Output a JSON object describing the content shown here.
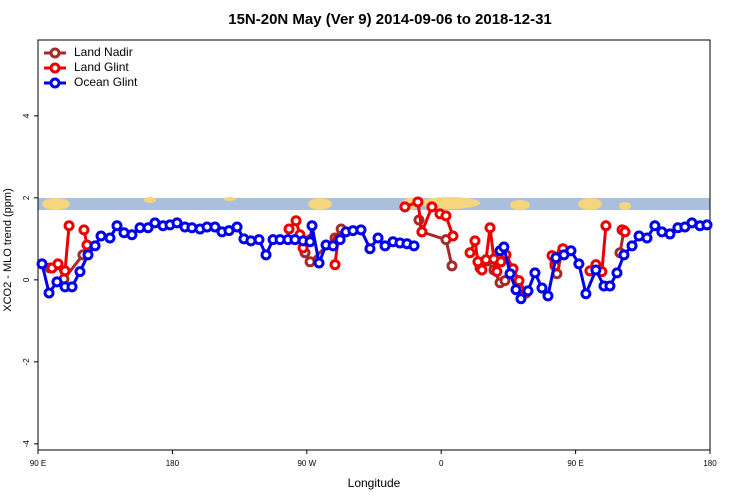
{
  "chart_data": {
    "type": "line",
    "title": "15N-20N May (Ver 9)   2014-09-06 to 2018-12-31",
    "xlabel": "Longitude",
    "ylabel": "XCO2 - MLO trend (ppm)",
    "xlim": [
      90,
      540
    ],
    "xticks": [
      {
        "value": 90,
        "label": "90 E"
      },
      180,
      {
        "value": 270,
        "label": "90 W"
      },
      {
        "value": 360,
        "label": "0"
      },
      {
        "value": 450,
        "label": "90 E"
      },
      {
        "value": 540,
        "label": "180"
      }
    ],
    "ylim": [
      -4.15,
      5.85
    ],
    "yticks": [
      -4,
      -2,
      0,
      2,
      4
    ],
    "legend": "top-left",
    "series": [
      {
        "name": "Land Nadir",
        "color": "#a52a2a",
        "x": [
          98.0,
          103.4,
          107.4,
          120.1,
          200,
          267.5,
          268.8,
          272.2,
          288.9,
          293.0,
          320,
          345.1,
          347.1,
          363.2,
          367.2,
          375,
          386.0,
          390.7,
          395.3,
          399.4,
          402.7,
          420,
          436.2,
          437.5,
          440.9,
          460,
          479.7,
          482.4
        ],
        "values": [
          0.29,
          0.37,
          0.02,
          0.61,
          null,
          0.95,
          0.66,
          0.44,
          1.02,
          1.24,
          null,
          1.46,
          1.17,
          0.98,
          0.34,
          null,
          0.29,
          0.46,
          0.24,
          -0.07,
          -0.02,
          null,
          0.41,
          0.15,
          0.66,
          null,
          0.66,
          1.2
        ]
      },
      {
        "name": "Land Glint",
        "color": "#ee0000",
        "x": [
          99.4,
          103.4,
          108.1,
          110.8,
          115,
          120.8,
          122.8,
          200,
          258.1,
          262.8,
          265.4,
          267.5,
          272.2,
          275,
          288.9,
          290.9,
          320,
          335.7,
          344.4,
          347.1,
          353.8,
          359.2,
          363.2,
          367.9,
          375,
          379.3,
          382.6,
          384.6,
          387.3,
          390.0,
          392.7,
          395.3,
          397.3,
          400.0,
          403.4,
          408.1,
          412.1,
          416.8,
          430,
          434.2,
          436.2,
          441.5,
          455,
          459.6,
          463.6,
          467.6,
          470.3,
          475,
          481.1,
          483.1
        ],
        "values": [
          0.29,
          0.39,
          0.22,
          1.32,
          null,
          1.22,
          0.85,
          null,
          1.24,
          1.44,
          1.1,
          0.78,
          0.98,
          null,
          0.37,
          0.98,
          null,
          1.78,
          1.9,
          1.17,
          1.78,
          1.61,
          1.56,
          1.07,
          null,
          0.66,
          0.95,
          0.44,
          0.24,
          0.49,
          1.27,
          0.51,
          0.2,
          0.44,
          0.61,
          0.27,
          -0.02,
          -0.32,
          null,
          0.59,
          0.34,
          0.76,
          null,
          0.22,
          0.37,
          0.2,
          1.32,
          null,
          1.22,
          1.17
        ]
      },
      {
        "name": "Ocean Glint",
        "color": "#0000ee",
        "x": [
          92.7,
          97.4,
          102.7,
          108.1,
          112.8,
          118.1,
          123.5,
          128.2,
          132.2,
          138.2,
          142.9,
          147.6,
          152.9,
          158.3,
          163.7,
          168.3,
          173.7,
          178.4,
          183.1,
          188.4,
          193.1,
          198.5,
          203.2,
          208.5,
          213.2,
          217.9,
          223.3,
          227.9,
          232.6,
          238.0,
          242.7,
          247.4,
          252.1,
          257.4,
          262.1,
          267.5,
          272.2,
          273.5,
          278.2,
          282.9,
          287.6,
          292.3,
          296.2,
          300.9,
          306.3,
          312.3,
          317.7,
          322.4,
          327.7,
          332.4,
          337.1,
          341.8,
          370,
          399.4,
          402.0,
          406.1,
          410.1,
          413.4,
          418.1,
          422.8,
          427.5,
          431.5,
          436.8,
          442.2,
          446.9,
          452.2,
          456.9,
          463.6,
          469.0,
          473.0,
          477.7,
          482.4,
          487.8,
          492.5,
          497.8,
          503.1,
          507.8,
          513.2,
          518.5,
          523.2,
          527.9,
          533.3,
          538.0
        ],
        "values": [
          0.39,
          -0.32,
          -0.05,
          -0.17,
          -0.17,
          0.2,
          0.61,
          0.83,
          1.07,
          1.02,
          1.32,
          1.15,
          1.1,
          1.27,
          1.27,
          1.39,
          1.32,
          1.34,
          1.39,
          1.29,
          1.27,
          1.24,
          1.29,
          1.29,
          1.17,
          1.2,
          1.29,
          1.0,
          0.95,
          0.98,
          0.61,
          0.98,
          0.98,
          0.98,
          0.98,
          0.95,
          0.93,
          1.32,
          0.41,
          0.85,
          0.83,
          0.98,
          1.17,
          1.2,
          1.22,
          0.76,
          1.02,
          0.83,
          0.93,
          0.9,
          0.88,
          0.83,
          null,
          0.71,
          0.8,
          0.15,
          -0.24,
          -0.46,
          -0.27,
          0.17,
          -0.2,
          -0.39,
          0.54,
          0.61,
          0.71,
          0.39,
          -0.34,
          0.24,
          -0.15,
          -0.15,
          0.17,
          0.61,
          0.83,
          1.07,
          1.02,
          1.32,
          1.17,
          1.12,
          1.27,
          1.29,
          1.39,
          1.32,
          1.34
        ]
      }
    ]
  }
}
